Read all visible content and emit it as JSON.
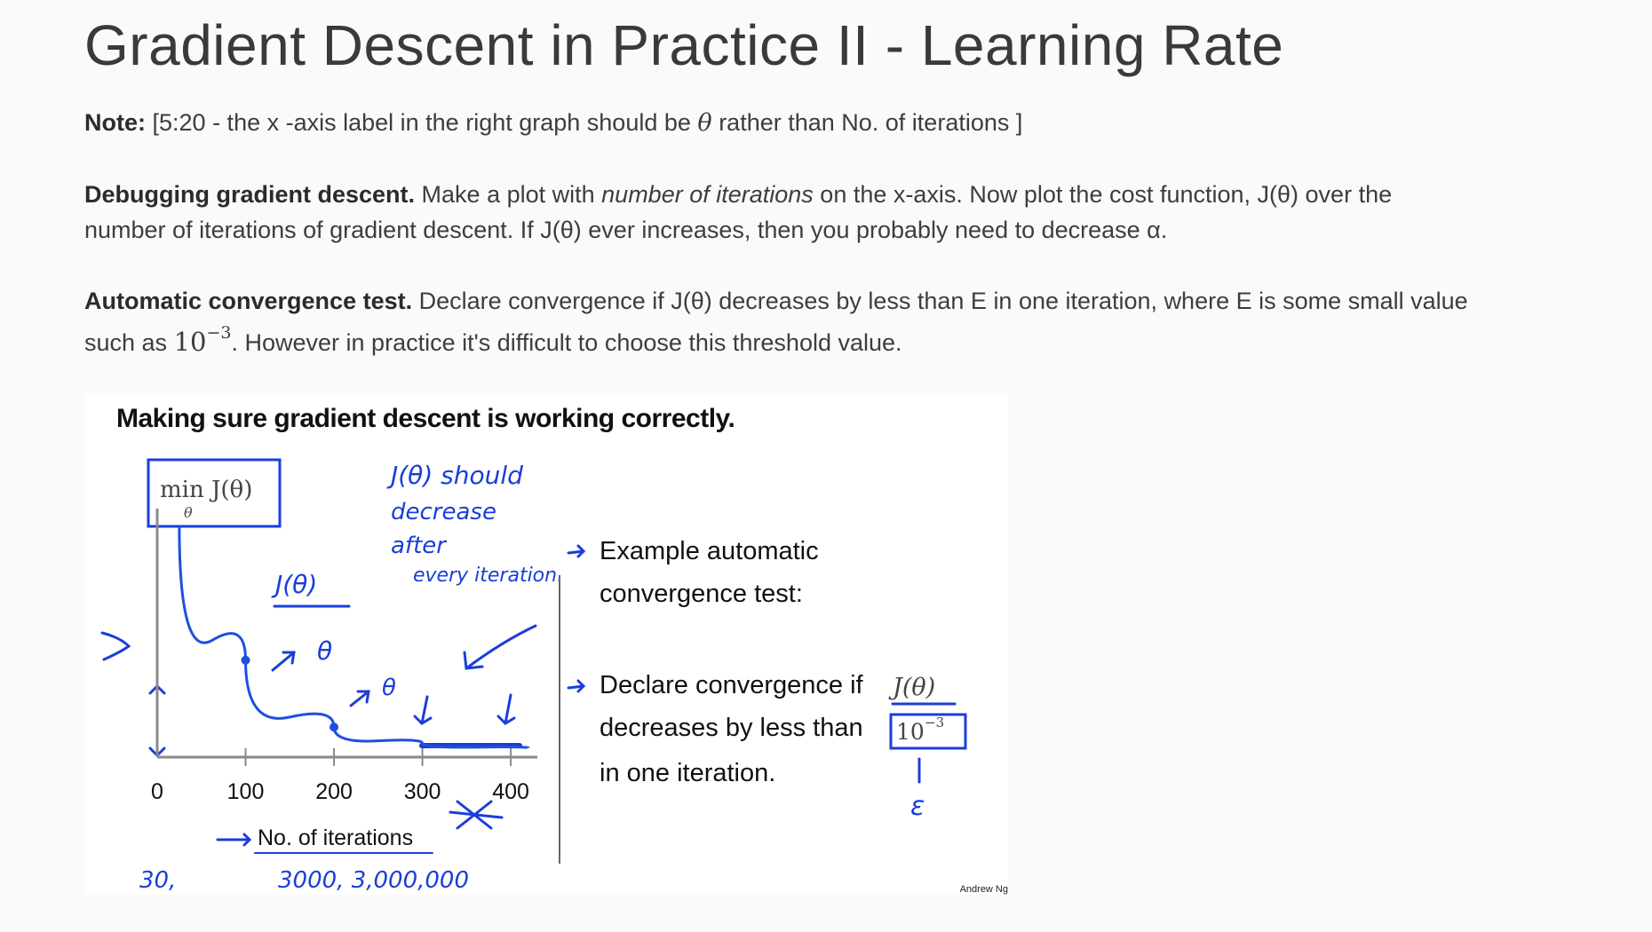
{
  "page": {
    "title": "Gradient Descent in Practice II - Learning Rate"
  },
  "note": {
    "label": "Note:",
    "text_before": "[5:20 - the x -axis label in the right graph should be",
    "theta": "θ",
    "text_after": "rather than No. of iterations ]"
  },
  "debugging": {
    "label": "Debugging gradient descent.",
    "text_1": "Make a plot with",
    "emphasis": "number of iterations",
    "text_2": "on the x-axis. Now plot the cost function, J(θ) over the",
    "text_3": "number of iterations of gradient descent. If J(θ) ever increases, then you probably need to decrease α."
  },
  "convergence": {
    "label": "Automatic convergence test.",
    "text_1": "Declare convergence if J(θ) decreases by less than E in one iteration, where E is some small value",
    "text_2": "such as",
    "base": "10",
    "exponent": "−3",
    "text_3": ". However in practice it's difficult to choose this threshold value."
  },
  "slide": {
    "heading": "Making sure gradient descent is working correctly.",
    "box_label_main": "min J(θ)",
    "box_label_sub": "θ",
    "right_text_1": "Example automatic",
    "right_text_2": "convergence test:",
    "right_text_3": "Declare convergence if",
    "right_math_1": "J(θ)",
    "right_text_4": "decreases by less than",
    "right_math_2_base": "10",
    "right_math_2_exp": "−3",
    "right_text_5": "in one iteration.",
    "xaxis_label": "No. of iterations",
    "credit": "Andrew Ng",
    "handwriting": {
      "top_1": "J(θ) should",
      "top_2": "decrease",
      "top_3": "after",
      "top_4": "every iteration.",
      "curve_label": "J(θ)",
      "theta_1": "θ",
      "theta_2": "θ",
      "bottom": "30,",
      "bottom_2": "3000, 3,000,000",
      "epsilon": "ε"
    }
  },
  "chart_data": {
    "type": "line",
    "title": "",
    "xlabel": "No. of iterations",
    "ylabel": "",
    "x_ticks": [
      "0",
      "100",
      "200",
      "300",
      "400"
    ],
    "xlim": [
      0,
      420
    ],
    "series": [
      {
        "x": [
          25,
          100,
          200,
          300,
          420
        ],
        "y": [
          1.0,
          0.42,
          0.13,
          0.06,
          0.04
        ]
      }
    ]
  },
  "colors": {
    "ink_blue": "#1a3ed9",
    "curve_blue": "#1f4fe0",
    "axis_gray": "#8a8a8a",
    "text_dark": "#3d3d3d"
  }
}
